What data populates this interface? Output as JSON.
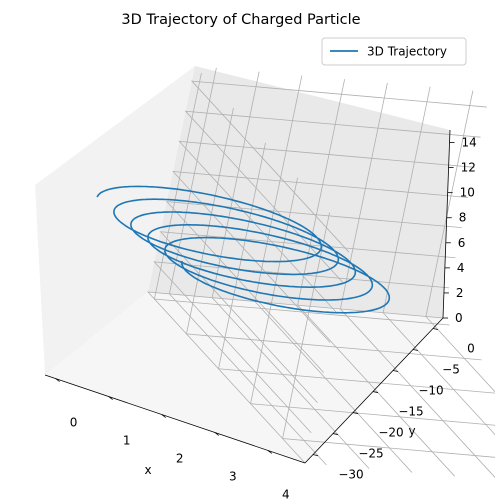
{
  "chart_data": {
    "type": "line",
    "projection": "3d",
    "title": "3D Trajectory of Charged Particle",
    "xlabel": "x",
    "ylabel": "y",
    "zlabel": "",
    "xlim": [
      -0.2,
      4.7
    ],
    "ylim": [
      -32,
      2.5
    ],
    "zlim": [
      0,
      15
    ],
    "xticks": [
      0,
      1,
      2,
      3,
      4
    ],
    "yticks": [
      0,
      -5,
      -10,
      -15,
      -20,
      -25,
      -30
    ],
    "yticklabels": [
      "0",
      "−5",
      "−10",
      "−15",
      "−20",
      "−25",
      "−30"
    ],
    "zticks": [
      0,
      2,
      4,
      6,
      8,
      10,
      12,
      14
    ],
    "grid": true,
    "legend": "top-right",
    "series": [
      {
        "name": "3D Trajectory",
        "color": "#1f77b4",
        "description": "helical trajectory, 5 loops, drifting in -y and x, z rising",
        "loops": 5,
        "x_range": [
          0.4,
          3.8
        ],
        "y_range": [
          -30,
          0
        ],
        "z_range": [
          0,
          15
        ]
      }
    ]
  }
}
